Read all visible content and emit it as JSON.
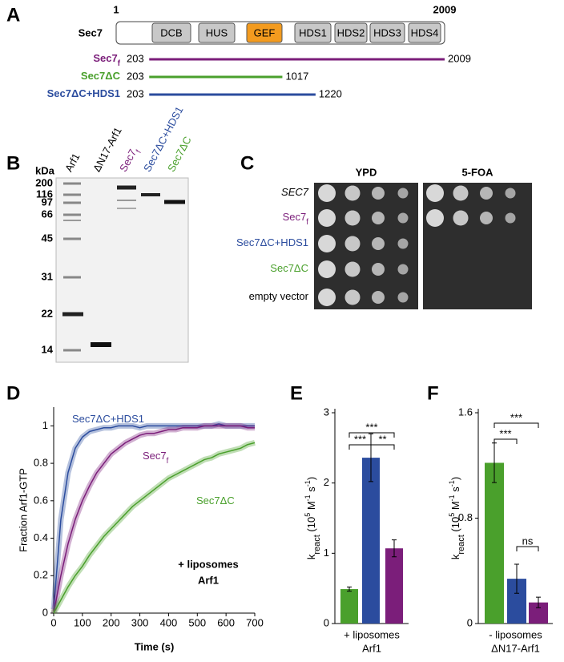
{
  "panel_labels": [
    "A",
    "B",
    "C",
    "D",
    "E",
    "F"
  ],
  "panel_a": {
    "scale_start": 1,
    "scale_end": 2009,
    "protein": "Sec7",
    "domains": [
      "DCB",
      "HUS",
      "GEF",
      "HDS1",
      "HDS2",
      "HDS3",
      "HDS4"
    ],
    "domain_colors": [
      "#c8c8c8",
      "#c8c8c8",
      "#f39b1f",
      "#c8c8c8",
      "#c8c8c8",
      "#c8c8c8",
      "#c8c8c8"
    ],
    "constructs": [
      {
        "name": "Sec7",
        "sub": "f",
        "color": "#7b1e7a",
        "start": 203,
        "end": 2009
      },
      {
        "name": "Sec7ΔC",
        "color": "#4aa02c",
        "start": 203,
        "end": 1017
      },
      {
        "name": "Sec7ΔC+HDS1",
        "color": "#2b4c9e",
        "start": 203,
        "end": 1220
      }
    ]
  },
  "panel_b": {
    "unit": "kDa",
    "markers": [
      200,
      116,
      97,
      66,
      45,
      31,
      22,
      14
    ],
    "lanes": [
      {
        "name": "Arf1",
        "color": "#000000"
      },
      {
        "name": "ΔN17-Arf1",
        "color": "#000000"
      },
      {
        "name": "Sec7",
        "sub": "f",
        "color": "#7b1e7a"
      },
      {
        "name": "Sec7ΔC+HDS1",
        "color": "#2b4c9e"
      },
      {
        "name": "Sec7ΔC",
        "color": "#4aa02c"
      }
    ]
  },
  "panel_c": {
    "media": [
      "YPD",
      "5-FOA"
    ],
    "strains": [
      {
        "name": "SEC7",
        "italic": true,
        "color": "#000000"
      },
      {
        "name": "Sec7",
        "sub": "f",
        "color": "#7b1e7a"
      },
      {
        "name": "Sec7ΔC+HDS1",
        "color": "#2b4c9e"
      },
      {
        "name": "Sec7ΔC",
        "color": "#4aa02c"
      },
      {
        "name": "empty vector",
        "color": "#000000"
      }
    ]
  },
  "chart_data": [
    {
      "type": "line",
      "x_label": "Time (s)",
      "y_label": "Fraction Arf1-GTP",
      "annotations": [
        "+ liposomes",
        "Arf1"
      ],
      "x": [
        0,
        25,
        50,
        75,
        100,
        125,
        150,
        175,
        200,
        225,
        250,
        275,
        300,
        325,
        350,
        375,
        400,
        425,
        450,
        475,
        500,
        525,
        550,
        575,
        600,
        625,
        650,
        675,
        700
      ],
      "xlim": [
        0,
        700
      ],
      "xticks": [
        0,
        100,
        200,
        300,
        400,
        500,
        600,
        700
      ],
      "ylim": [
        0,
        1.1
      ],
      "yticks": [
        0,
        0.2,
        0.4,
        0.6,
        0.8,
        1
      ],
      "grid": false,
      "series": [
        {
          "name": "Sec7ΔC+HDS1",
          "color": "#2b4c9e",
          "values": [
            0.02,
            0.5,
            0.75,
            0.88,
            0.94,
            0.97,
            0.98,
            0.99,
            0.99,
            1.0,
            1.0,
            1.0,
            0.99,
            1.0,
            1.0,
            1.0,
            1.0,
            1.0,
            1.0,
            1.0,
            1.0,
            1.0,
            1.0,
            1.01,
            1.0,
            1.0,
            1.0,
            1.0,
            1.0
          ]
        },
        {
          "name": "Sec7",
          "sub": "f",
          "color": "#7b1e7a",
          "values": [
            0,
            0.2,
            0.37,
            0.5,
            0.6,
            0.68,
            0.75,
            0.8,
            0.85,
            0.88,
            0.91,
            0.93,
            0.95,
            0.96,
            0.96,
            0.97,
            0.98,
            0.98,
            0.99,
            0.99,
            0.99,
            1.0,
            1.0,
            1.0,
            1.0,
            1.0,
            1.0,
            0.99,
            0.99
          ]
        },
        {
          "name": "Sec7ΔC",
          "color": "#4aa02c",
          "values": [
            0,
            0.07,
            0.14,
            0.2,
            0.25,
            0.31,
            0.36,
            0.41,
            0.45,
            0.49,
            0.53,
            0.57,
            0.6,
            0.63,
            0.66,
            0.69,
            0.72,
            0.74,
            0.76,
            0.78,
            0.8,
            0.82,
            0.83,
            0.85,
            0.86,
            0.87,
            0.88,
            0.9,
            0.91
          ]
        }
      ]
    },
    {
      "type": "bar",
      "y_label": [
        {
          "text": "k"
        },
        {
          "text": "react",
          "sub": true
        },
        {
          "text": " (10"
        },
        {
          "text": "5",
          "sup": true
        },
        {
          "text": " M"
        },
        {
          "text": "-1",
          "sup": true
        },
        {
          "text": " s"
        },
        {
          "text": "-1",
          "sup": true
        },
        {
          "text": ")"
        }
      ],
      "x_label": [
        "+ liposomes",
        "Arf1"
      ],
      "ylim": [
        0,
        3
      ],
      "yticks": [
        0,
        1,
        2,
        3
      ],
      "values": [
        0.49,
        2.36,
        1.07
      ],
      "errors": [
        0.03,
        0.34,
        0.12
      ],
      "colors": [
        "#4aa02c",
        "#2b4c9e",
        "#7b1e7a"
      ],
      "significance": [
        "***",
        "***",
        "**"
      ]
    },
    {
      "type": "bar",
      "y_label": [
        {
          "text": "k"
        },
        {
          "text": "react",
          "sub": true
        },
        {
          "text": " (10"
        },
        {
          "text": "5",
          "sup": true
        },
        {
          "text": " M"
        },
        {
          "text": "-1",
          "sup": true
        },
        {
          "text": " s"
        },
        {
          "text": "-1",
          "sup": true
        },
        {
          "text": ")"
        }
      ],
      "x_label": [
        "- liposomes",
        "ΔN17-Arf1"
      ],
      "ylim": [
        0,
        1.6
      ],
      "yticks": [
        0,
        0.8,
        1.6
      ],
      "values": [
        1.22,
        0.34,
        0.16
      ],
      "errors": [
        0.15,
        0.11,
        0.04
      ],
      "colors": [
        "#4aa02c",
        "#2b4c9e",
        "#7b1e7a"
      ],
      "significance": [
        "***",
        "***",
        "ns"
      ]
    }
  ]
}
